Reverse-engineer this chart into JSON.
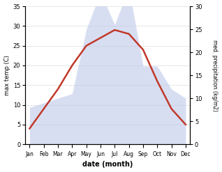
{
  "months": [
    "Jan",
    "Feb",
    "Mar",
    "Apr",
    "May",
    "Jun",
    "Jul",
    "Aug",
    "Sep",
    "Oct",
    "Nov",
    "Dec"
  ],
  "temperature": [
    4,
    9,
    14,
    20,
    25,
    27,
    29,
    28,
    24,
    16,
    9,
    5
  ],
  "precipitation": [
    8,
    9,
    10,
    11,
    25,
    33,
    26,
    34,
    17,
    17,
    12,
    10
  ],
  "temp_color": "#c0392b",
  "precip_color": "#b8c4e8",
  "temp_ylim": [
    0,
    35
  ],
  "precip_ylim": [
    0,
    30
  ],
  "xlabel": "date (month)",
  "ylabel_left": "max temp (C)",
  "ylabel_right": "med. precipitation (kg/m2)",
  "bg_color": "#ffffff",
  "line_width": 1.8
}
